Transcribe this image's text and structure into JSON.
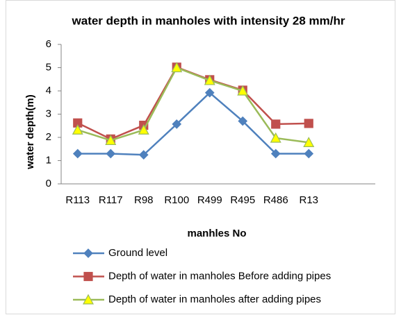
{
  "chart_data": {
    "type": "line",
    "title": "water depth in manholes with intensity 28 mm/hr",
    "x_label": "manhles No",
    "y_label": "water depth(m)",
    "categories": [
      "R113",
      "R117",
      "R98",
      "R100",
      "R499",
      "R495",
      "R486",
      "R13"
    ],
    "series": [
      {
        "name": "Ground level",
        "color": "#4f81bd",
        "marker": "diamond",
        "marker_fill": "#4f81bd",
        "values": [
          1.3,
          1.3,
          1.25,
          2.57,
          3.92,
          2.7,
          1.3,
          1.3
        ]
      },
      {
        "name": "Depth of water in manholes Before adding pipes",
        "color": "#c0504d",
        "marker": "square",
        "marker_fill": "#c0504d",
        "values": [
          2.62,
          1.93,
          2.52,
          5.02,
          4.48,
          4.03,
          2.57,
          2.6
        ]
      },
      {
        "name": "Depth of water in manholes after adding pipes",
        "color": "#9bbb59",
        "marker": "triangle",
        "marker_fill": "#ffff00",
        "values": [
          2.32,
          1.87,
          2.32,
          5.0,
          4.45,
          4.0,
          1.97,
          1.78
        ]
      }
    ],
    "ylim": [
      0,
      6
    ],
    "yticks": [
      0,
      1,
      2,
      3,
      4,
      5,
      6
    ],
    "grid": false,
    "legend": "bottom"
  }
}
